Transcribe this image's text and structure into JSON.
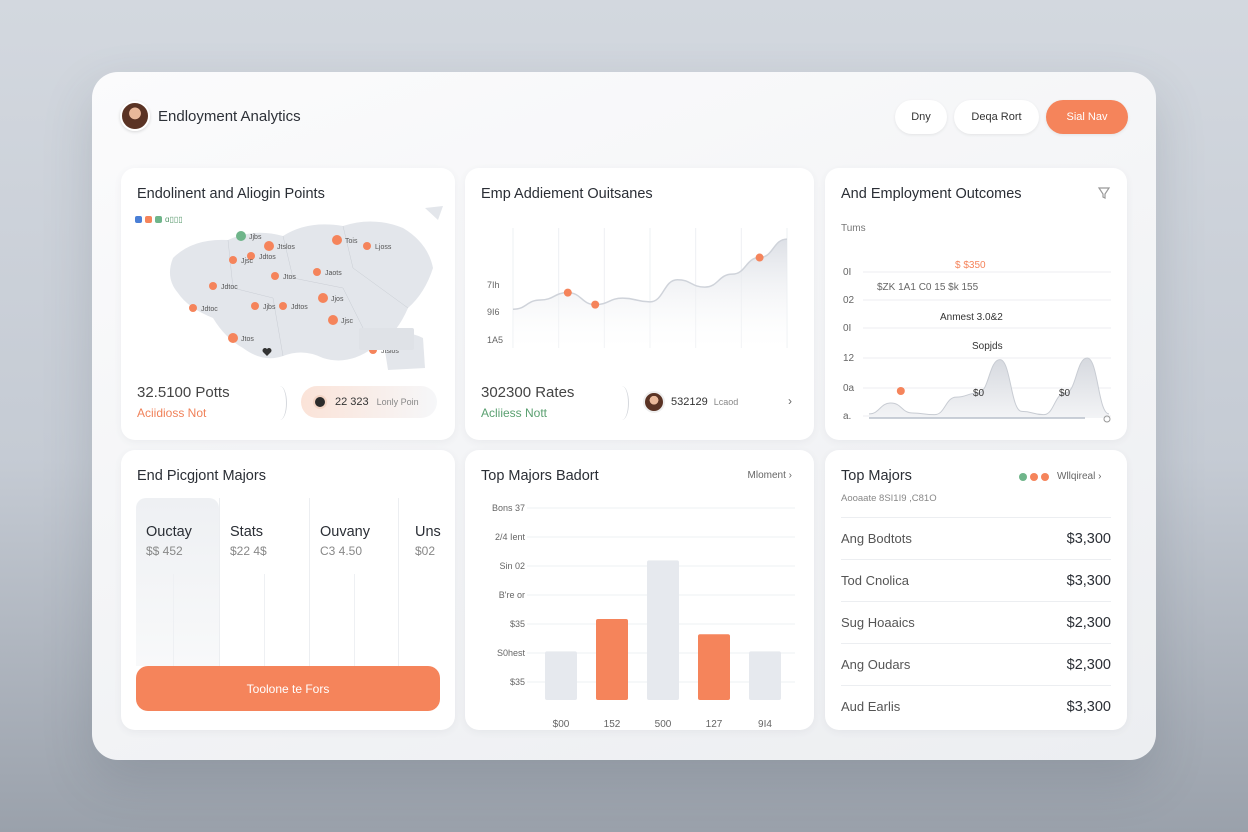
{
  "header": {
    "title": "Endloyment Analytics",
    "buttons": [
      "Dny",
      "Deqa Rort",
      "Sial Nav"
    ]
  },
  "map_card": {
    "title": "Endolinent and Aliogin Points",
    "legend_label": "ɑ▯▯▯",
    "stat": "32.5100 Potts",
    "stat_sub": "Aciidioss Not",
    "pill_num": "22 323",
    "pill_text": "Lonly Poin",
    "markers": [
      "Jjbs",
      "Jdtos",
      "Jjsc",
      "Jtslos",
      "Jdtoc",
      "Jtos",
      "Tois",
      "Jaots",
      "Ljoss",
      "Jjos"
    ]
  },
  "trend_card": {
    "title": "Emp Addiement Ouitsanes",
    "stat": "302300 Rates",
    "stat_sub": "Acliiess Nott",
    "pill_num": "532129",
    "pill_text": "Lcaod",
    "chevron": "›",
    "chart_data": {
      "type": "area",
      "y_tick_labels": [
        "7Ih",
        "9I6",
        "1A5"
      ],
      "x": [
        0,
        1,
        2,
        3,
        4,
        5,
        6,
        7,
        8,
        9,
        10
      ],
      "values": [
        42,
        52,
        60,
        47,
        54,
        50,
        74,
        66,
        80,
        98,
        118
      ],
      "highlighted_points": [
        2,
        3,
        9
      ]
    }
  },
  "outcomes_card": {
    "title": "And Employment Outcomes",
    "filter_icon": "filter-icon",
    "subtitle": "Tums",
    "y_tick_labels": [
      "0I",
      "02",
      "0I",
      "12",
      "0a",
      "a."
    ],
    "annotations": [
      "$ $350",
      "$ZK 1A1 C0 15 $k 155",
      "Anmest 3.0&2",
      "Sopjds",
      "$0",
      "$0"
    ],
    "chart_data": {
      "type": "area",
      "x": [
        0,
        1,
        2,
        3,
        4,
        5,
        6,
        7,
        8,
        9,
        10,
        11
      ],
      "values": [
        5,
        18,
        6,
        4,
        25,
        30,
        70,
        8,
        4,
        30,
        72,
        5
      ],
      "highlighted_points": [
        1
      ]
    }
  },
  "majors_card": {
    "title": "End Picgjont Majors",
    "columns": [
      {
        "label": "Ouctay",
        "value": "$$ 452"
      },
      {
        "label": "Stats",
        "value": "$22 4$"
      },
      {
        "label": "Ouvany",
        "value": "C3 4.50"
      },
      {
        "label": "Uns",
        "value": "$02"
      }
    ],
    "cta": "Toolone te Fors"
  },
  "bars_card": {
    "title": "Top Majors Badort",
    "link": "Mloment ›",
    "chart_data": {
      "type": "bar",
      "y_tick_labels": [
        "Bons 37",
        "2/4 Ient",
        "Sin 02",
        "B're or",
        "$35",
        "S0hest",
        "$35"
      ],
      "categories": [
        "$00",
        "152",
        "500",
        "127",
        "9I4"
      ],
      "values": [
        48,
        80,
        138,
        65,
        48
      ],
      "colors": [
        "#e6e9ee",
        "#f5845b",
        "#e6e9ee",
        "#f5845b",
        "#e6e9ee"
      ],
      "ylim": [
        0,
        170
      ]
    }
  },
  "top_majors": {
    "title": "Top Majors",
    "link": "Wllqireal ›",
    "subtitle": "Aooaate 8SI1I9 ,C81O",
    "dot_colors": [
      "#6fb58a",
      "#f5845b",
      "#f5845b"
    ],
    "rows": [
      {
        "label": "Ang Bodtots",
        "value": "$3,300"
      },
      {
        "label": "Tod Cnolica",
        "value": "$3,300"
      },
      {
        "label": "Sug Hoaaics",
        "value": "$2,300"
      },
      {
        "label": "Ang Oudars",
        "value": "$2,300"
      },
      {
        "label": "Aud Earlis",
        "value": "$3,300"
      }
    ]
  },
  "colors": {
    "accent": "#f5845b",
    "positive": "#5aa070"
  }
}
